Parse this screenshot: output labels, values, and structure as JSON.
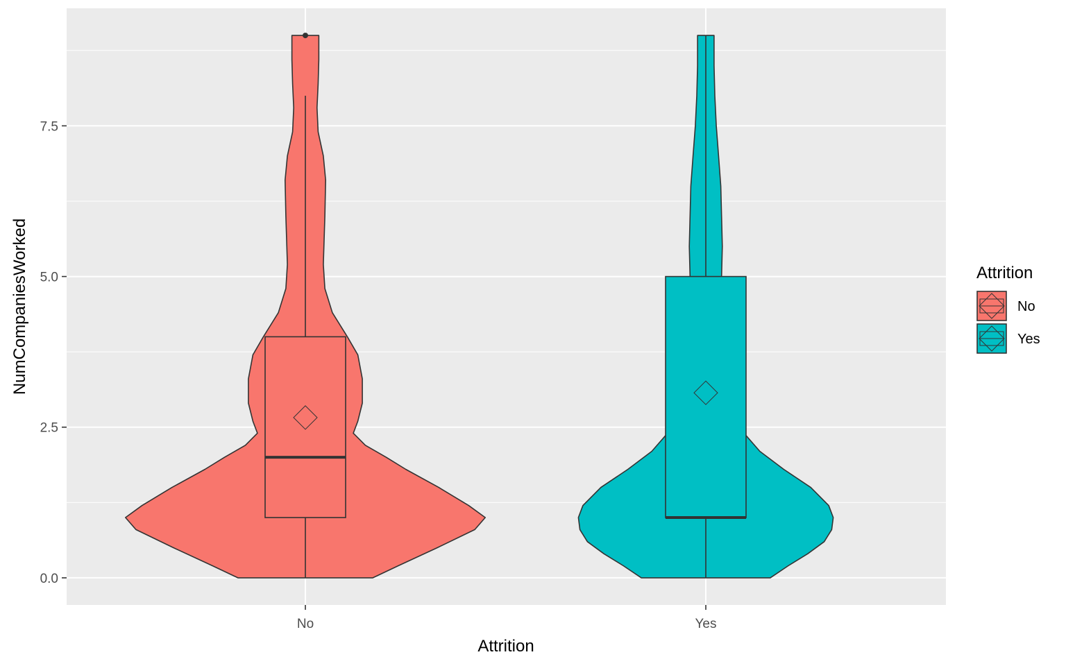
{
  "chart_data": {
    "type": "violin",
    "xlabel": "Attrition",
    "ylabel": "NumCompaniesWorked",
    "categories": [
      "No",
      "Yes"
    ],
    "ylim": [
      -0.45,
      9.45
    ],
    "yticks": [
      0.0,
      2.5,
      5.0,
      7.5
    ],
    "ytick_labels": [
      "0.0",
      "2.5",
      "5.0",
      "7.5"
    ],
    "grid": true,
    "legend": {
      "title": "Attrition",
      "position": "right",
      "entries": [
        "No",
        "Yes"
      ]
    },
    "colors": {
      "No": "#F8766D",
      "Yes": "#00BFC4",
      "panel": "#EBEBEB",
      "outline": "#333333"
    },
    "series": [
      {
        "name": "No",
        "box": {
          "whisker_low": 0,
          "q1": 1,
          "median": 2,
          "q3": 4,
          "whisker_high": 8
        },
        "mean": 2.66,
        "outliers": [
          9
        ],
        "density": [
          [
            0,
            0.45
          ],
          [
            0.2,
            0.62
          ],
          [
            0.5,
            0.88
          ],
          [
            0.8,
            1.13
          ],
          [
            1,
            1.2
          ],
          [
            1.2,
            1.09
          ],
          [
            1.5,
            0.89
          ],
          [
            1.8,
            0.67
          ],
          [
            2,
            0.54
          ],
          [
            2.2,
            0.4
          ],
          [
            2.4,
            0.32
          ],
          [
            2.6,
            0.35
          ],
          [
            2.9,
            0.38
          ],
          [
            3.3,
            0.38
          ],
          [
            3.7,
            0.35
          ],
          [
            4,
            0.28
          ],
          [
            4.4,
            0.18
          ],
          [
            4.8,
            0.13
          ],
          [
            5.2,
            0.12
          ],
          [
            5.6,
            0.125
          ],
          [
            6.0,
            0.13
          ],
          [
            6.6,
            0.135
          ],
          [
            7.0,
            0.12
          ],
          [
            7.4,
            0.085
          ],
          [
            7.8,
            0.078
          ],
          [
            8.2,
            0.085
          ],
          [
            8.6,
            0.09
          ],
          [
            9,
            0.09
          ]
        ]
      },
      {
        "name": "Yes",
        "box": {
          "whisker_low": 0,
          "q1": 1,
          "median": 1,
          "q3": 5,
          "whisker_high": 9
        },
        "mean": 3.07,
        "outliers": [],
        "density": [
          [
            0,
            0.43
          ],
          [
            0.2,
            0.55
          ],
          [
            0.4,
            0.68
          ],
          [
            0.6,
            0.79
          ],
          [
            0.8,
            0.84
          ],
          [
            1,
            0.85
          ],
          [
            1.2,
            0.82
          ],
          [
            1.5,
            0.7
          ],
          [
            1.8,
            0.52
          ],
          [
            2.1,
            0.36
          ],
          [
            2.5,
            0.22
          ],
          [
            3.0,
            0.13
          ],
          [
            3.5,
            0.1
          ],
          [
            4.0,
            0.105
          ],
          [
            4.5,
            0.1
          ],
          [
            5.0,
            0.105
          ],
          [
            5.5,
            0.11
          ],
          [
            6.0,
            0.105
          ],
          [
            6.5,
            0.1
          ],
          [
            7.0,
            0.085
          ],
          [
            7.5,
            0.07
          ],
          [
            8.0,
            0.06
          ],
          [
            8.5,
            0.055
          ],
          [
            9,
            0.055
          ]
        ]
      }
    ]
  }
}
